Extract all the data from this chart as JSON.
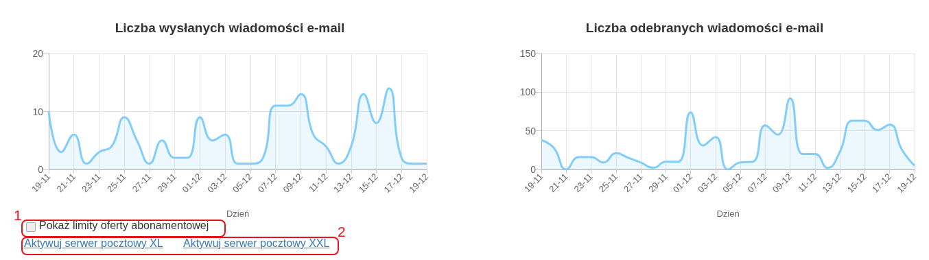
{
  "chart_data": [
    {
      "type": "area",
      "title": "Liczba wysłanych wiadomości e-mail",
      "xlabel": "Dzień",
      "categories": [
        "19-11",
        null,
        "21-11",
        null,
        "23-11",
        null,
        "25-11",
        null,
        "27-11",
        null,
        "29-11",
        null,
        "01-12",
        null,
        "03-12",
        null,
        "05-12",
        null,
        "07-12",
        null,
        "09-12",
        null,
        "11-12",
        null,
        "13-12",
        null,
        "15-12",
        null,
        "17-12",
        null,
        "19-12"
      ],
      "series": [
        {
          "color": "#82cdfb",
          "values": [
            10,
            3,
            6,
            1,
            3,
            4,
            9,
            5,
            1,
            5,
            2,
            2,
            9,
            5,
            6,
            1,
            1,
            2,
            11,
            11,
            13,
            6,
            4,
            1,
            4,
            13,
            8,
            14,
            2,
            1,
            1
          ]
        }
      ],
      "ylim": [
        0,
        20
      ],
      "yticks": [
        0,
        10,
        20
      ],
      "grid": true,
      "marker": "none"
    },
    {
      "type": "area",
      "title": "Liczba odebranych wiadomości e-mail",
      "xlabel": "Dzień",
      "categories": [
        "19-11",
        null,
        "21-11",
        null,
        "23-11",
        null,
        "25-11",
        null,
        "27-11",
        null,
        "29-11",
        null,
        "01-12",
        null,
        "03-12",
        null,
        "05-12",
        null,
        "07-12",
        null,
        "09-12",
        null,
        "11-12",
        null,
        "13-12",
        null,
        "15-12",
        null,
        "17-12",
        null,
        "19-12"
      ],
      "series": [
        {
          "color": "#82cdfb",
          "values": [
            38,
            28,
            0,
            16,
            16,
            9,
            21,
            15,
            9,
            2,
            10,
            10,
            74,
            31,
            42,
            0,
            9,
            10,
            57,
            45,
            92,
            20,
            20,
            2,
            23,
            63,
            63,
            51,
            58,
            25,
            5
          ]
        }
      ],
      "ylim": [
        0,
        150
      ],
      "yticks": [
        0,
        50,
        100,
        150
      ],
      "grid": true,
      "marker": "none"
    },
    {
      "type": "other",
      "annotations": [
        "1",
        "Pokaż limity oferty abonamentowej",
        "2",
        "Aktywuj serwer pocztowy XL",
        "Aktywuj serwer pocztowy XXL"
      ]
    }
  ]
}
